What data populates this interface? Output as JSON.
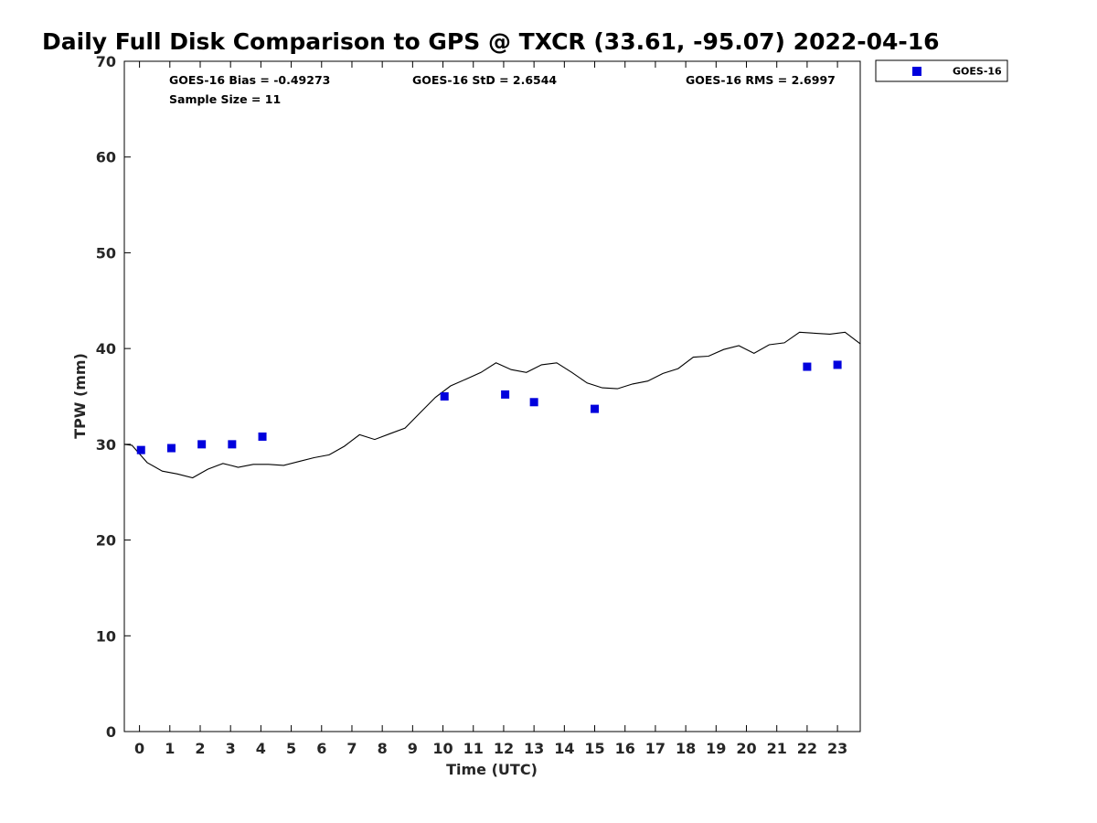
{
  "chart_data": {
    "type": "scatter",
    "title": "Daily Full Disk Comparison to GPS @ TXCR (33.61, -95.07) 2022-04-16",
    "xlabel": "Time (UTC)",
    "ylabel": "TPW (mm)",
    "xlim": [
      -0.5,
      23.75
    ],
    "ylim": [
      0,
      70
    ],
    "xticks": [
      0,
      1,
      2,
      3,
      4,
      5,
      6,
      7,
      8,
      9,
      10,
      11,
      12,
      13,
      14,
      15,
      16,
      17,
      18,
      19,
      20,
      21,
      22,
      23
    ],
    "yticks": [
      0,
      10,
      20,
      30,
      40,
      50,
      60,
      70
    ],
    "grid": false,
    "legend_position": "outside-top-right",
    "stats": {
      "bias": "GOES-16 Bias = -0.49273",
      "std": "GOES-16 StD = 2.6544",
      "rms": "GOES-16 RMS = 2.6997",
      "sample": "Sample Size = 11"
    },
    "series": [
      {
        "name": "GOES-16",
        "kind": "scatter",
        "marker": "square",
        "color": "#0000dd",
        "x": [
          0.05,
          1.05,
          2.05,
          3.05,
          4.05,
          10.05,
          12.05,
          13.0,
          15.0,
          22.0,
          23.0
        ],
        "y": [
          29.4,
          29.6,
          30.0,
          30.0,
          30.8,
          35.0,
          35.2,
          34.4,
          33.7,
          38.1,
          38.3
        ]
      },
      {
        "kind": "line",
        "color": "#000000",
        "x": [
          -0.5,
          -0.25,
          0.25,
          0.75,
          1.25,
          1.75,
          2.25,
          2.75,
          3.25,
          3.75,
          4.25,
          4.75,
          5.25,
          5.75,
          6.25,
          6.75,
          7.25,
          7.75,
          8.25,
          8.75,
          9.25,
          9.75,
          10.25,
          10.75,
          11.25,
          11.75,
          12.25,
          12.75,
          13.25,
          13.75,
          14.25,
          14.75,
          15.25,
          15.75,
          16.25,
          16.75,
          17.25,
          17.75,
          18.25,
          18.75,
          19.25,
          19.75,
          20.25,
          20.75,
          21.25,
          21.75,
          22.25,
          22.75,
          23.25,
          23.75
        ],
        "y": [
          30.0,
          29.9,
          28.1,
          27.2,
          26.9,
          26.5,
          27.4,
          28.0,
          27.6,
          27.9,
          27.9,
          27.8,
          28.2,
          28.6,
          28.9,
          29.8,
          31.0,
          30.5,
          31.1,
          31.7,
          33.3,
          34.9,
          36.1,
          36.8,
          37.5,
          38.5,
          37.8,
          37.5,
          38.3,
          38.5,
          37.5,
          36.4,
          35.9,
          35.8,
          36.3,
          36.6,
          37.4,
          37.9,
          39.1,
          39.2,
          39.9,
          40.3,
          39.5,
          40.4,
          40.6,
          41.7,
          41.6,
          41.5,
          41.7,
          40.5
        ]
      }
    ]
  }
}
